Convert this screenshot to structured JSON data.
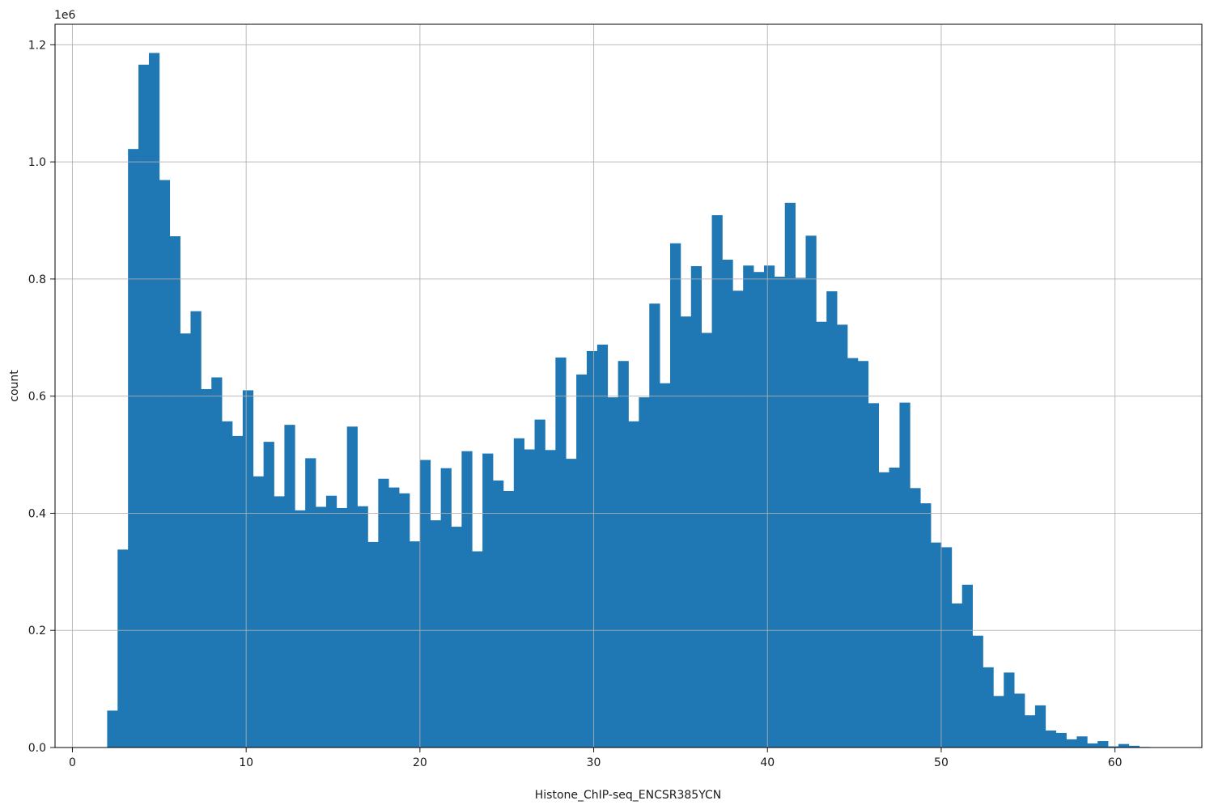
{
  "chart_data": {
    "type": "bar",
    "subtype": "histogram",
    "title": "",
    "xlabel": "Histone_ChIP-seq_ENCSR385YCN",
    "ylabel": "count",
    "y_offset_label": "1e6",
    "bar_color": "#1f77b4",
    "grid": true,
    "grid_color": "#b0b0b0",
    "grid_above_bars": true,
    "legend": "none",
    "xlim": [
      -1,
      65
    ],
    "ylim": [
      0,
      1235000
    ],
    "x_ticks": {
      "values": [
        0,
        10,
        20,
        30,
        40,
        50,
        60
      ],
      "labels": [
        "0",
        "10",
        "20",
        "30",
        "40",
        "50",
        "60"
      ]
    },
    "y_ticks": {
      "values": [
        0,
        200000,
        400000,
        600000,
        800000,
        1000000,
        1200000
      ],
      "labels": [
        "0.0",
        "0.2",
        "0.4",
        "0.6",
        "0.8",
        "1.0",
        "1.2"
      ]
    },
    "bin_start": 2.0,
    "bin_width": 0.6,
    "counts": [
      63000,
      338000,
      1022000,
      1166000,
      1186000,
      969000,
      873000,
      707000,
      745000,
      612000,
      632000,
      557000,
      532000,
      610000,
      463000,
      522000,
      429000,
      551000,
      405000,
      494000,
      411000,
      430000,
      409000,
      548000,
      412000,
      351000,
      459000,
      444000,
      434000,
      352000,
      491000,
      388000,
      477000,
      377000,
      506000,
      335000,
      502000,
      456000,
      438000,
      528000,
      509000,
      560000,
      508000,
      666000,
      493000,
      637000,
      677000,
      688000,
      598000,
      660000,
      557000,
      598000,
      758000,
      622000,
      861000,
      736000,
      822000,
      708000,
      909000,
      833000,
      780000,
      823000,
      812000,
      823000,
      804000,
      930000,
      802000,
      874000,
      727000,
      779000,
      722000,
      665000,
      660000,
      588000,
      470000,
      478000,
      589000,
      443000,
      417000,
      350000,
      342000,
      246000,
      278000,
      191000,
      137000,
      88000,
      128000,
      92000,
      55000,
      72000,
      29000,
      25000,
      14000,
      19000,
      7000,
      11000,
      2000,
      6000,
      3000,
      1000
    ]
  }
}
